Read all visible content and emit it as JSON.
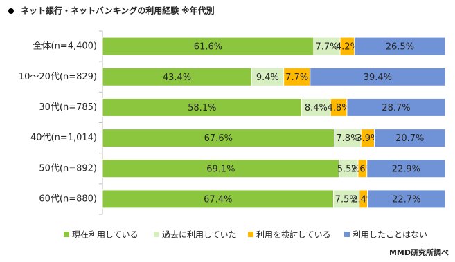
{
  "chart_data": {
    "type": "stacked-bar-horizontal",
    "title": "ネット銀行・ネットバンキングの利用経験",
    "subtitle": "※年代別",
    "source": "MMD研究所調べ",
    "categories": [
      "全体(n=4,400)",
      "10～20代(n=829)",
      "30代(n=785)",
      "40代(n=1,014)",
      "50代(n=892)",
      "60代(n=880)"
    ],
    "series": [
      {
        "name": "現在利用している",
        "color": "#8cc63e",
        "values": [
          61.6,
          43.4,
          58.1,
          67.6,
          69.1,
          67.4
        ],
        "value_labels": [
          "61.6%",
          "43.4%",
          "58.1%",
          "67.6%",
          "69.1%",
          "67.4%"
        ]
      },
      {
        "name": "過去に利用していた",
        "color": "#d6eec0",
        "values": [
          7.7,
          9.4,
          8.4,
          7.8,
          5.5,
          7.5
        ],
        "value_labels": [
          "7.7%",
          "9.4%",
          "8.4%",
          "7.8%",
          "5.5%",
          "7.5%"
        ]
      },
      {
        "name": "利用を検討している",
        "color": "#ffb900",
        "values": [
          4.2,
          7.7,
          4.8,
          3.9,
          2.6,
          2.4
        ],
        "value_labels": [
          "4.2%",
          "7.7%",
          "4.8%",
          "3.9%",
          "2.6%",
          "2.4%"
        ]
      },
      {
        "name": "利用したことはない",
        "color": "#7092d6",
        "values": [
          26.5,
          39.4,
          28.7,
          20.7,
          22.9,
          22.7
        ],
        "value_labels": [
          "26.5%",
          "39.4%",
          "28.7%",
          "20.7%",
          "22.9%",
          "22.7%"
        ]
      }
    ]
  }
}
